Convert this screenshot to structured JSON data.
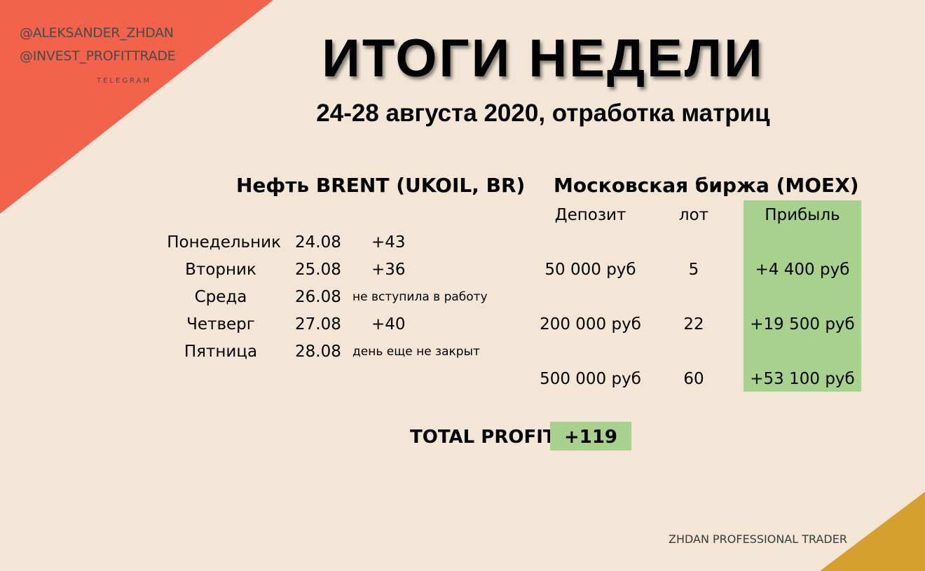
{
  "branding": {
    "handles": [
      "@ALEKSANDER_ZHDAN",
      "@INVEST_PROFITTRADE"
    ],
    "platform": "TELEGRAM",
    "footer": "ZHDAN PROFESSIONAL TRADER"
  },
  "title": "ИТОГИ НЕДЕЛИ",
  "subtitle": "24-28 августа 2020, отработка матриц",
  "brent": {
    "heading": "Нефть BRENT (UKOIL, BR)",
    "rows": [
      {
        "day": "Понедельник",
        "date": "24.08",
        "result": "+43"
      },
      {
        "day": "Вторник",
        "date": "25.08",
        "result": "+36"
      },
      {
        "day": "Среда",
        "date": "26.08",
        "result": "не вступила в работу"
      },
      {
        "day": "Четверг",
        "date": "27.08",
        "result": "+40"
      },
      {
        "day": "Пятница",
        "date": "28.08",
        "result": "день еще не закрыт"
      }
    ]
  },
  "moex": {
    "heading": "Московская биржа (MOEX)",
    "columns": [
      "Депозит",
      "лот",
      "Прибыль"
    ],
    "rows": [
      {
        "deposit": "50 000 руб",
        "lot": "5",
        "profit": "+4 400 руб"
      },
      {
        "deposit": "200 000 руб",
        "lot": "22",
        "profit": "+19 500 руб"
      },
      {
        "deposit": "500 000 руб",
        "lot": "60",
        "profit": "+53 100 руб"
      }
    ]
  },
  "total": {
    "label": "TOTAL PROFIT",
    "value": "+119"
  },
  "colors": {
    "background": "#f3e6d6",
    "accent_red": "#f3624a",
    "accent_gold": "#d4a02e",
    "highlight_green": "#a9d18e"
  }
}
